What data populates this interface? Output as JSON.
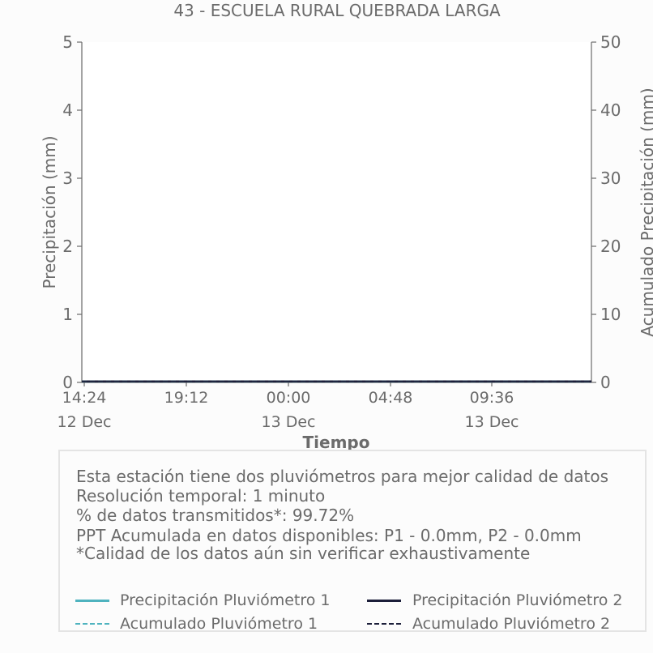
{
  "chart_data": {
    "type": "line",
    "title": "43 - ESCUELA RURAL QUEBRADA LARGA",
    "xlabel": "Tiempo",
    "ylabel": "Precipitación (mm)",
    "y2label": "Acumulado Precipitación (mm)",
    "ylim": [
      0,
      5
    ],
    "y2lim": [
      0,
      50
    ],
    "yticks": [
      "0",
      "1",
      "2",
      "3",
      "4",
      "5"
    ],
    "y2ticks": [
      "0",
      "10",
      "20",
      "30",
      "40",
      "50"
    ],
    "xticks": [
      {
        "time": "14:24",
        "date": "12 Dec"
      },
      {
        "time": "19:12",
        "date": ""
      },
      {
        "time": "00:00",
        "date": "13 Dec"
      },
      {
        "time": "04:48",
        "date": ""
      },
      {
        "time": "09:36",
        "date": "13 Dec"
      }
    ],
    "x": [
      "12 Dec 14:24",
      "12 Dec 19:12",
      "13 Dec 00:00",
      "13 Dec 04:48",
      "13 Dec 09:36",
      "13 Dec 14:24"
    ],
    "series": [
      {
        "name": "Precipitación Pluviómetro 1",
        "axis": "left",
        "style": "solid",
        "color": "#4fb3bf",
        "values": [
          0,
          0,
          0,
          0,
          0,
          0
        ]
      },
      {
        "name": "Precipitación Pluviómetro 2",
        "axis": "left",
        "style": "solid",
        "color": "#1c1f3a",
        "values": [
          0,
          0,
          0,
          0,
          0,
          0
        ]
      },
      {
        "name": "Acumulado Pluviómetro 1",
        "axis": "right",
        "style": "dashed",
        "color": "#4fb3bf",
        "values": [
          0,
          0,
          0,
          0,
          0,
          0
        ]
      },
      {
        "name": "Acumulado Pluviómetro 2",
        "axis": "right",
        "style": "dashed",
        "color": "#1c1f3a",
        "values": [
          0,
          0,
          0,
          0,
          0,
          0
        ]
      }
    ],
    "grid": false,
    "legend_position": "bottom"
  },
  "info": [
    "Esta estación tiene dos pluviómetros para mejor calidad de datos",
    "Resolución temporal: 1 minuto",
    "% de datos transmitidos*: 99.72%",
    "PPT Acumulada en datos disponibles: P1 - 0.0mm, P2 - 0.0mm",
    "*Calidad de los datos aún sin verificar exhaustivamente"
  ]
}
